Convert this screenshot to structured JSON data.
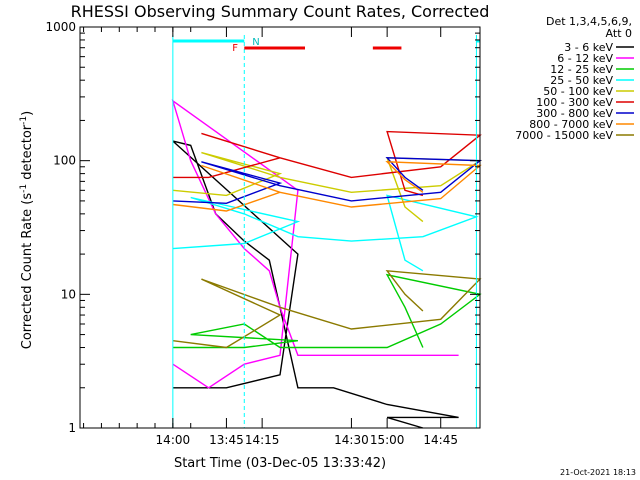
{
  "chart_data": {
    "type": "line",
    "title": "RHESSI Observing Summary Count Rates, Corrected",
    "xlabel": "Start Time (03-Dec-05 13:33:42)",
    "ylabel_main": "Corrected Count Rate (s",
    "ylabel_sup1": "-1",
    "ylabel_mid": " detector",
    "ylabel_sup2": "-1",
    "ylabel_end": ")",
    "yscale": "log",
    "ylim": [
      1,
      1000
    ],
    "xlim_minutes": [
      13.6,
      14.93
    ],
    "y_ticks": [
      {
        "label": "1000",
        "value": 1000
      },
      {
        "label": "100",
        "value": 100
      },
      {
        "label": "10",
        "value": 10
      },
      {
        "label": "1",
        "value": 1
      }
    ],
    "x_ticks": [
      {
        "label": "13:45",
        "t": 13.75
      },
      {
        "label": "14:00",
        "t": 14.0
      },
      {
        "label": "14:15",
        "t": 14.25
      },
      {
        "label": "14:30",
        "t": 14.5
      },
      {
        "label": "14:45",
        "t": 14.75
      },
      {
        "label": "15:00",
        "t": 15.0
      }
    ],
    "legend_header": [
      "Det 1,3,4,5,6,9,",
      "Att 0"
    ],
    "legend_placement": "right",
    "timestamp": "21-Oct-2021 18:13",
    "annotations": {
      "night_label": "N",
      "flare_label": "F",
      "night_intervals": [
        [
          13.6,
          13.8
        ],
        [
          15.25,
          15.41
        ]
      ],
      "flare_intervals": [
        [
          14.2,
          14.37
        ],
        [
          14.56,
          14.64
        ]
      ]
    },
    "series": [
      {
        "name": "3 - 6 keV",
        "color": "#000000",
        "t": [
          13.6,
          13.75,
          13.9,
          13.95,
          14.0,
          14.05,
          14.12,
          14.2,
          14.27,
          14.3,
          14.35,
          14.45,
          14.6,
          14.8,
          15.0,
          15.1
        ],
        "values": [
          2,
          2,
          2.5,
          20,
          140,
          130,
          40,
          25,
          18,
          8,
          2,
          2,
          1.5,
          1.2,
          1.2,
          1
        ]
      },
      {
        "name": "6 - 12 keV",
        "color": "#ff00ff",
        "t": [
          13.6,
          13.7,
          13.8,
          13.9,
          13.95,
          14.0,
          14.05,
          14.12,
          14.2,
          14.27,
          14.3,
          14.35,
          14.5,
          14.8,
          15.1
        ],
        "values": [
          3,
          2,
          3,
          3.5,
          60,
          280,
          100,
          40,
          22,
          15,
          8,
          3.5,
          3.5,
          3.5,
          3.5
        ]
      },
      {
        "name": "12 - 25 keV",
        "color": "#00cc00",
        "t": [
          13.6,
          13.8,
          13.95,
          14.05,
          14.2,
          14.3,
          14.4,
          14.6,
          14.75,
          14.9,
          15.0,
          15.05,
          15.1
        ],
        "values": [
          4,
          4,
          4.5,
          5,
          6,
          4,
          4,
          4,
          6,
          10,
          14,
          8,
          4
        ]
      },
      {
        "name": "25 - 50 keV",
        "color": "#00ffff",
        "t": [
          13.6,
          13.8,
          13.95,
          14.05,
          14.2,
          14.35,
          14.5,
          14.7,
          14.85,
          15.0,
          15.05,
          15.1
        ],
        "values": [
          22,
          24,
          35,
          53,
          40,
          27,
          25,
          27,
          38,
          55,
          18,
          15
        ]
      },
      {
        "name": "50 - 100 keV",
        "color": "#cccc00",
        "t": [
          13.6,
          13.75,
          13.9,
          14.08,
          14.3,
          14.5,
          14.75,
          14.95,
          15.0,
          15.05,
          15.1
        ],
        "values": [
          60,
          55,
          80,
          115,
          75,
          58,
          65,
          100,
          105,
          45,
          35
        ]
      },
      {
        "name": "100 - 300 keV",
        "color": "#dd0000",
        "t": [
          13.6,
          13.7,
          13.9,
          14.08,
          14.3,
          14.5,
          14.75,
          14.95,
          15.0,
          15.05,
          15.1
        ],
        "values": [
          75,
          75,
          105,
          160,
          105,
          75,
          90,
          155,
          165,
          60,
          55
        ]
      },
      {
        "name": "300 - 800 keV",
        "color": "#0000cc",
        "t": [
          13.6,
          13.75,
          13.9,
          14.08,
          14.3,
          14.5,
          14.75,
          14.95,
          15.0,
          15.05,
          15.1
        ],
        "values": [
          50,
          48,
          68,
          98,
          65,
          50,
          58,
          100,
          105,
          75,
          60
        ]
      },
      {
        "name": "800 - 7000 keV",
        "color": "#ff8800",
        "t": [
          13.6,
          13.75,
          13.9,
          14.08,
          14.3,
          14.5,
          14.75,
          14.95,
          15.0,
          15.05,
          15.1
        ],
        "values": [
          47,
          42,
          58,
          92,
          58,
          45,
          52,
          92,
          98,
          72,
          58
        ]
      },
      {
        "name": "7000 - 15000 keV",
        "color": "#8b7a00",
        "t": [
          13.6,
          13.75,
          13.9,
          14.08,
          14.3,
          14.5,
          14.75,
          14.95,
          15.0,
          15.05,
          15.1
        ],
        "values": [
          4.5,
          4,
          7,
          13,
          8,
          5.5,
          6.5,
          13,
          15,
          10,
          7.5
        ]
      }
    ]
  }
}
